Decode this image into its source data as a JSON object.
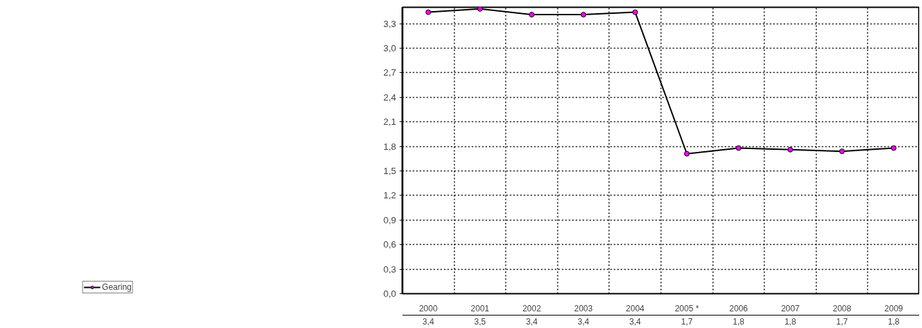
{
  "chart_data": {
    "type": "line",
    "categories": [
      "2000",
      "2001",
      "2002",
      "2003",
      "2004",
      "2005 *",
      "2006",
      "2007",
      "2008",
      "2009"
    ],
    "series": [
      {
        "name": "Gearing",
        "color": "#000000",
        "colors": [
          "#ff00ff",
          "#ff00ff",
          "#ff00ff",
          "#ff00ff",
          "#ff00ff",
          "#ff00ff",
          "#ff00ff",
          "#ff00ff",
          "#ff00ff",
          "#ff00ff"
        ],
        "values": [
          3.44,
          3.48,
          3.41,
          3.41,
          3.44,
          1.71,
          1.78,
          1.76,
          1.74,
          1.78
        ],
        "value_labels": [
          "3,4",
          "3,5",
          "3,4",
          "3,4",
          "3,4",
          "1,7",
          "1,8",
          "1,8",
          "1,7",
          "1,8"
        ]
      }
    ],
    "ylim": [
      0,
      3.5
    ],
    "yticks": [
      {
        "value": 0,
        "label": "0,0"
      },
      {
        "value": 0.3,
        "label": "0,3"
      },
      {
        "value": 0.6,
        "label": "0,6"
      },
      {
        "value": 0.9,
        "label": "0,9"
      },
      {
        "value": 1.2,
        "label": "1,2"
      },
      {
        "value": 1.5,
        "label": "1,5"
      },
      {
        "value": 1.8,
        "label": "1,8"
      },
      {
        "value": 2.1,
        "label": "2,1"
      },
      {
        "value": 2.4,
        "label": "2,4"
      },
      {
        "value": 2.7,
        "label": "2,7"
      },
      {
        "value": 3.0,
        "label": "3,0"
      },
      {
        "value": 3.3,
        "label": "3,3"
      }
    ],
    "grid": true,
    "legend": "bottom left",
    "marker": "circle",
    "line_style": "solid"
  }
}
